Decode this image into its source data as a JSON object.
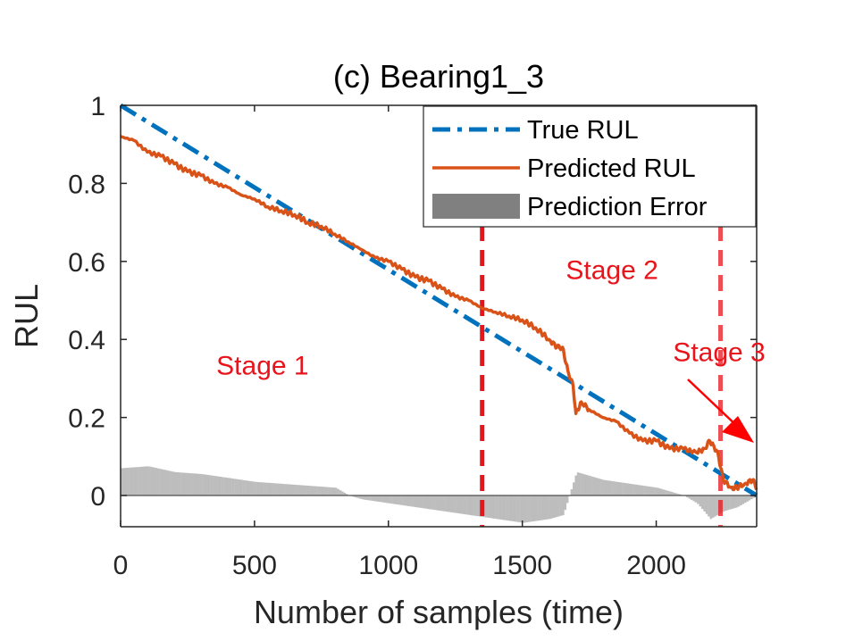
{
  "chart_data": {
    "type": "line",
    "title": "(c) Bearing1_3",
    "xlabel": "Number of samples (time)",
    "ylabel": "RUL",
    "xlim": [
      0,
      2375
    ],
    "ylim": [
      -0.08,
      1.0
    ],
    "x_ticks": [
      0,
      500,
      1000,
      1500,
      2000
    ],
    "y_ticks": [
      0,
      0.2,
      0.4,
      0.6,
      0.8,
      1
    ],
    "x_tick_labels": [
      "0",
      "500",
      "1000",
      "1500",
      "2000"
    ],
    "y_tick_labels": [
      "0",
      "0.2",
      "0.4",
      "0.6",
      "0.8",
      "1"
    ],
    "grid": false,
    "legend_position": "top-right",
    "legend": [
      "True RUL",
      "Predicted RUL",
      "Prediction Error"
    ],
    "series": [
      {
        "name": "True RUL",
        "style": "dash-dot",
        "color": "#0072bd",
        "x": [
          0,
          2375
        ],
        "y": [
          1.0,
          0.0
        ]
      },
      {
        "name": "Predicted RUL",
        "style": "solid",
        "color": "#d95319",
        "x": [
          0,
          50,
          100,
          150,
          200,
          250,
          300,
          350,
          400,
          450,
          500,
          550,
          600,
          650,
          700,
          750,
          800,
          850,
          900,
          950,
          1000,
          1050,
          1100,
          1150,
          1200,
          1250,
          1300,
          1350,
          1400,
          1450,
          1500,
          1550,
          1600,
          1630,
          1650,
          1670,
          1690,
          1700,
          1720,
          1750,
          1800,
          1850,
          1900,
          1950,
          2000,
          2050,
          2100,
          2150,
          2180,
          2200,
          2230,
          2250,
          2280,
          2300,
          2330,
          2360,
          2375
        ],
        "y": [
          0.92,
          0.91,
          0.88,
          0.87,
          0.85,
          0.83,
          0.82,
          0.8,
          0.79,
          0.77,
          0.76,
          0.74,
          0.73,
          0.72,
          0.7,
          0.69,
          0.67,
          0.65,
          0.63,
          0.61,
          0.6,
          0.58,
          0.56,
          0.55,
          0.53,
          0.51,
          0.5,
          0.48,
          0.47,
          0.46,
          0.45,
          0.43,
          0.4,
          0.38,
          0.38,
          0.32,
          0.28,
          0.21,
          0.24,
          0.22,
          0.2,
          0.19,
          0.16,
          0.14,
          0.14,
          0.12,
          0.12,
          0.11,
          0.12,
          0.14,
          0.11,
          0.04,
          0.02,
          0.02,
          0.03,
          0.04,
          0.02
        ]
      },
      {
        "name": "Prediction Error",
        "style": "bar",
        "color": "#bdbdbd",
        "x": [
          0,
          100,
          200,
          300,
          400,
          500,
          600,
          700,
          800,
          850,
          900,
          1000,
          1100,
          1200,
          1300,
          1400,
          1500,
          1600,
          1650,
          1700,
          1750,
          1800,
          1900,
          2000,
          2100,
          2150,
          2200,
          2250,
          2300,
          2375
        ],
        "y": [
          0.07,
          0.075,
          0.06,
          0.055,
          0.045,
          0.035,
          0.03,
          0.025,
          0.02,
          0.0,
          -0.01,
          -0.02,
          -0.03,
          -0.04,
          -0.05,
          -0.06,
          -0.07,
          -0.06,
          -0.05,
          0.06,
          0.05,
          0.04,
          0.03,
          0.02,
          0.0,
          -0.02,
          -0.06,
          -0.04,
          -0.03,
          0.0
        ]
      }
    ],
    "annotations": [
      {
        "text": "Stage 1",
        "x": 530,
        "y": 0.31
      },
      {
        "text": "Stage 2",
        "x": 1835,
        "y": 0.555
      },
      {
        "text": "Stage 3",
        "x": 2235,
        "y": 0.345
      }
    ],
    "stage_boundaries": [
      1350,
      2240
    ],
    "stage_color": "#e8141c"
  }
}
